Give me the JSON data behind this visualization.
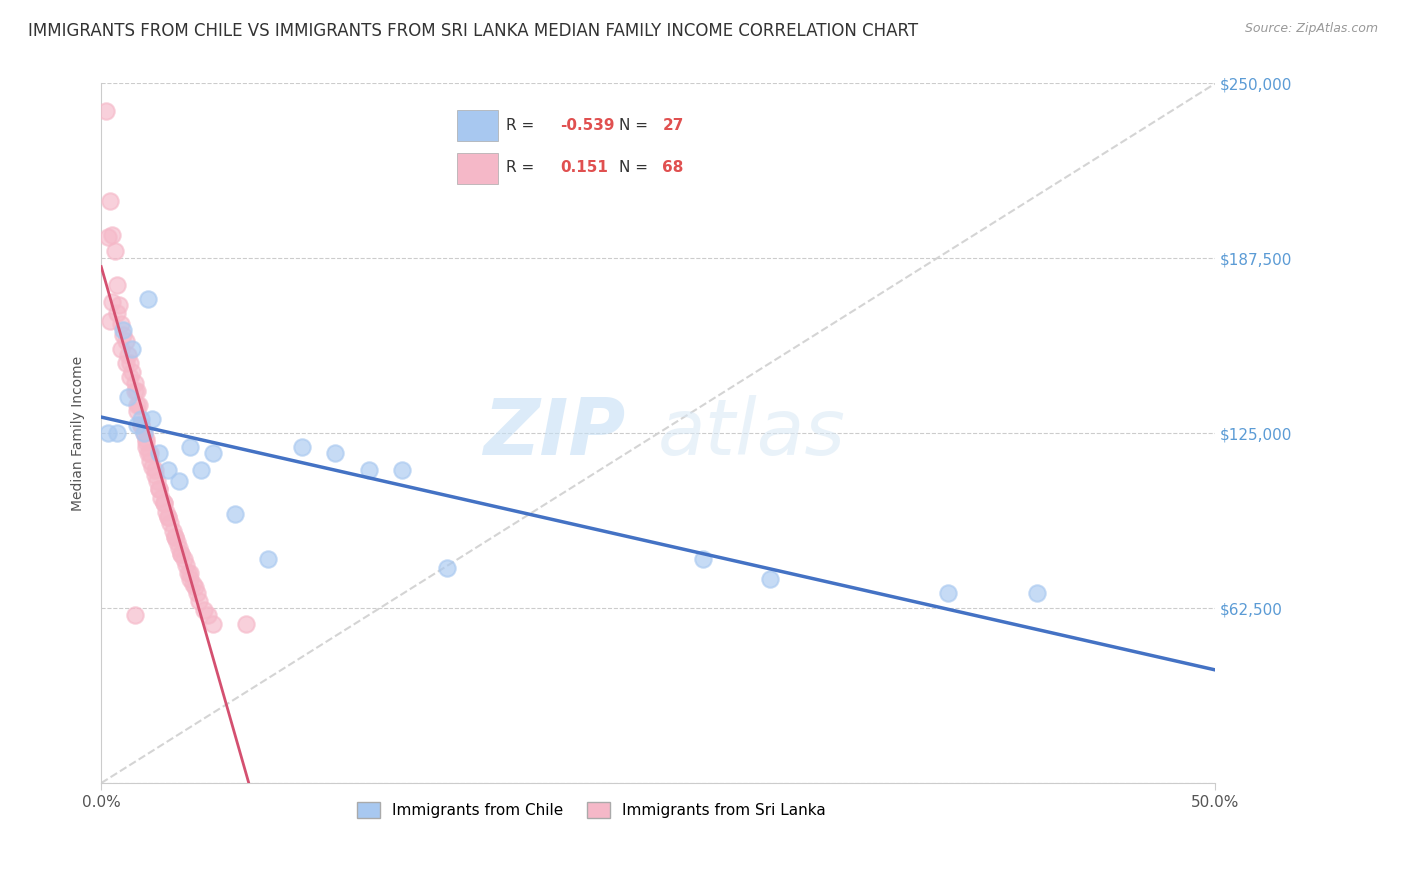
{
  "title": "IMMIGRANTS FROM CHILE VS IMMIGRANTS FROM SRI LANKA MEDIAN FAMILY INCOME CORRELATION CHART",
  "source": "Source: ZipAtlas.com",
  "ylabel": "Median Family Income",
  "xlim": [
    0.0,
    0.5
  ],
  "ylim": [
    0,
    250000
  ],
  "yticks": [
    0,
    62500,
    125000,
    187500,
    250000
  ],
  "ytick_labels": [
    "",
    "$62,500",
    "$125,000",
    "$187,500",
    "$250,000"
  ],
  "xtick_labels_show": [
    "0.0%",
    "50.0%"
  ],
  "xtick_positions_show": [
    0.0,
    0.5
  ],
  "chile_color": "#a8c8f0",
  "srilanka_color": "#f5b8c8",
  "chile_R": -0.539,
  "chile_N": 27,
  "srilanka_R": 0.151,
  "srilanka_N": 68,
  "chile_line_color": "#4472c4",
  "srilanka_line_color": "#d45070",
  "diagonal_color": "#d0d0d0",
  "background_color": "#ffffff",
  "watermark_zip": "ZIP",
  "watermark_atlas": "atlas",
  "title_fontsize": 12,
  "axis_label_fontsize": 10,
  "tick_fontsize": 11,
  "legend_text_color": "#5b9bd5",
  "legend_r_color": "#e05050",
  "chile_x": [
    0.003,
    0.007,
    0.01,
    0.012,
    0.014,
    0.016,
    0.018,
    0.019,
    0.021,
    0.023,
    0.026,
    0.03,
    0.035,
    0.04,
    0.045,
    0.05,
    0.06,
    0.075,
    0.09,
    0.105,
    0.12,
    0.135,
    0.155,
    0.27,
    0.3,
    0.38,
    0.42
  ],
  "chile_y": [
    125000,
    125000,
    162000,
    138000,
    155000,
    128000,
    130000,
    125000,
    173000,
    130000,
    118000,
    112000,
    108000,
    120000,
    112000,
    118000,
    96000,
    80000,
    120000,
    118000,
    112000,
    112000,
    77000,
    80000,
    73000,
    68000,
    68000
  ],
  "srilanka_x": [
    0.002,
    0.004,
    0.005,
    0.006,
    0.007,
    0.008,
    0.009,
    0.01,
    0.011,
    0.012,
    0.013,
    0.014,
    0.015,
    0.016,
    0.016,
    0.017,
    0.018,
    0.019,
    0.02,
    0.02,
    0.021,
    0.022,
    0.023,
    0.024,
    0.025,
    0.026,
    0.027,
    0.028,
    0.029,
    0.03,
    0.031,
    0.032,
    0.033,
    0.034,
    0.035,
    0.036,
    0.037,
    0.038,
    0.039,
    0.04,
    0.041,
    0.042,
    0.043,
    0.044,
    0.046,
    0.048,
    0.05,
    0.003,
    0.004,
    0.005,
    0.007,
    0.009,
    0.011,
    0.013,
    0.015,
    0.016,
    0.018,
    0.02,
    0.022,
    0.024,
    0.026,
    0.028,
    0.03,
    0.033,
    0.036,
    0.04,
    0.015,
    0.065
  ],
  "srilanka_y": [
    240000,
    208000,
    196000,
    190000,
    178000,
    171000,
    164000,
    160000,
    158000,
    153000,
    150000,
    147000,
    143000,
    140000,
    133000,
    135000,
    128000,
    125000,
    123000,
    120000,
    118000,
    115000,
    113000,
    110000,
    108000,
    105000,
    102000,
    100000,
    97000,
    95000,
    93000,
    90000,
    88000,
    86000,
    84000,
    82000,
    80000,
    78000,
    75000,
    73000,
    71000,
    70000,
    68000,
    65000,
    62000,
    60000,
    57000,
    195000,
    165000,
    172000,
    168000,
    155000,
    150000,
    145000,
    140000,
    135000,
    128000,
    122000,
    118000,
    112000,
    105000,
    100000,
    95000,
    88000,
    82000,
    75000,
    60000,
    57000
  ]
}
